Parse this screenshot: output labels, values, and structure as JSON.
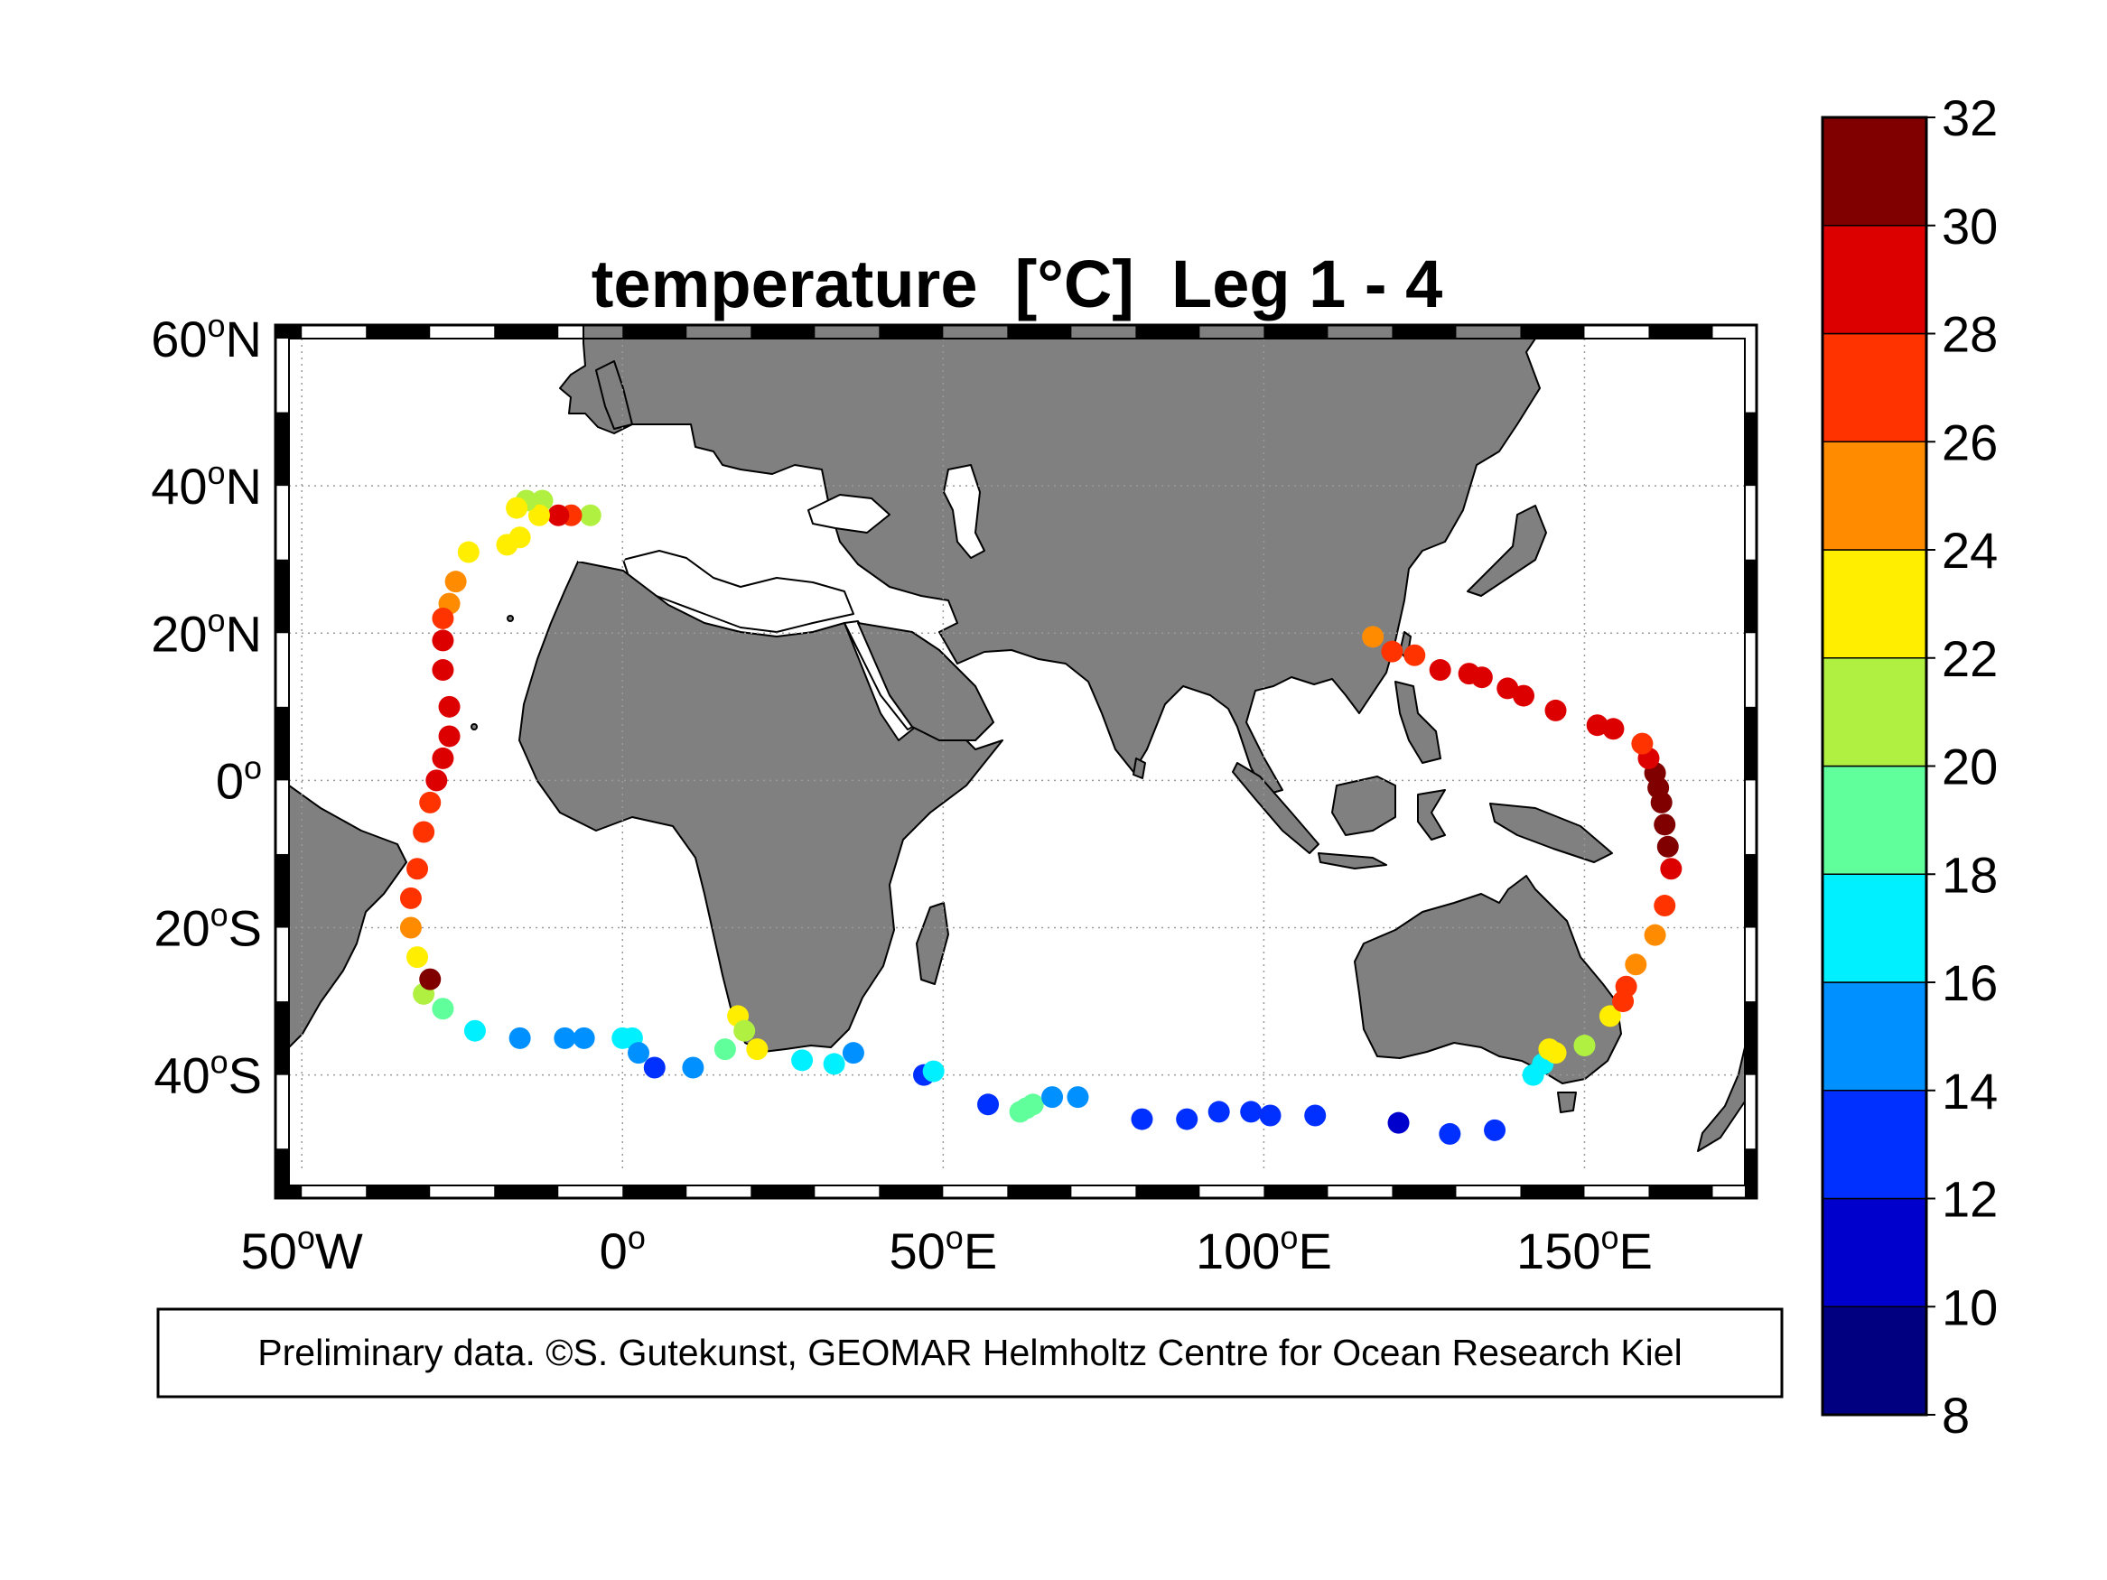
{
  "title": "temperature  [°C]  Leg 1 - 4",
  "note": "Preliminary data. ©S. Gutekunst, GEOMAR Helmholtz Centre for Ocean Research Kiel",
  "map": {
    "projection": "equirectangular",
    "lon_range": [
      -52,
      175
    ],
    "lat_range": [
      -55,
      60
    ],
    "land_color": "#808080",
    "ocean_color": "#ffffff",
    "grid": true,
    "x_ticks": [
      {
        "value": -50,
        "num": "50",
        "hemi": "W"
      },
      {
        "value": 0,
        "num": "0",
        "hemi": ""
      },
      {
        "value": 50,
        "num": "50",
        "hemi": "E"
      },
      {
        "value": 100,
        "num": "100",
        "hemi": "E"
      },
      {
        "value": 150,
        "num": "150",
        "hemi": "E"
      }
    ],
    "y_ticks": [
      {
        "value": 60,
        "num": "60",
        "hemi": "N"
      },
      {
        "value": 40,
        "num": "40",
        "hemi": "N"
      },
      {
        "value": 20,
        "num": "20",
        "hemi": "N"
      },
      {
        "value": 0,
        "num": "0",
        "hemi": ""
      },
      {
        "value": -20,
        "num": "20",
        "hemi": "S"
      },
      {
        "value": -40,
        "num": "40",
        "hemi": "S"
      }
    ],
    "degree_symbol": "o"
  },
  "colorbar": {
    "min": 8,
    "max": 32,
    "step": 2,
    "tick_labels": [
      "32",
      "30",
      "28",
      "26",
      "24",
      "22",
      "20",
      "18",
      "16",
      "14",
      "12",
      "10",
      "8"
    ],
    "colors": [
      "#000080",
      "#0000cc",
      "#0030ff",
      "#0090ff",
      "#00f0ff",
      "#60ff9c",
      "#b0f040",
      "#ffee00",
      "#ff8c00",
      "#ff3300",
      "#dd0000",
      "#800000"
    ]
  },
  "chart_data": {
    "type": "scatter",
    "x_name": "longitude (deg E)",
    "y_name": "latitude (deg N)",
    "value_name": "temperature [°C]",
    "points": [
      [
        -5,
        36,
        21
      ],
      [
        -8,
        36,
        27
      ],
      [
        -10,
        36,
        28
      ],
      [
        -12.5,
        38,
        21
      ],
      [
        -13,
        36,
        23
      ],
      [
        -15,
        38,
        21
      ],
      [
        -16.5,
        37,
        23
      ],
      [
        -16,
        33,
        23
      ],
      [
        -18,
        32,
        23
      ],
      [
        -24,
        31,
        23
      ],
      [
        -26,
        27,
        25
      ],
      [
        -27,
        24,
        24
      ],
      [
        -28,
        22,
        27
      ],
      [
        -28,
        19,
        28
      ],
      [
        -28,
        15,
        28
      ],
      [
        -27,
        10,
        29
      ],
      [
        -27,
        6,
        29
      ],
      [
        -28,
        3,
        28
      ],
      [
        -29,
        0,
        28
      ],
      [
        -30,
        -3,
        27
      ],
      [
        -31,
        -7,
        27
      ],
      [
        -32,
        -12,
        27
      ],
      [
        -33,
        -16,
        27
      ],
      [
        -33,
        -20,
        25
      ],
      [
        -32,
        -24,
        23
      ],
      [
        -31,
        -29,
        21
      ],
      [
        -30,
        -27,
        30
      ],
      [
        -28,
        -31,
        19
      ],
      [
        -23,
        -34,
        17
      ],
      [
        -16,
        -35,
        15
      ],
      [
        -9,
        -35,
        15
      ],
      [
        -6,
        -35,
        15
      ],
      [
        0,
        -35,
        17
      ],
      [
        1.5,
        -35,
        17
      ],
      [
        2.5,
        -37,
        14
      ],
      [
        5,
        -39,
        13
      ],
      [
        11,
        -39,
        15
      ],
      [
        16,
        -36.5,
        19
      ],
      [
        18,
        -32,
        23
      ],
      [
        19,
        -34,
        20
      ],
      [
        21,
        -36.5,
        23
      ],
      [
        28,
        -38,
        17
      ],
      [
        33,
        -38.5,
        16
      ],
      [
        36,
        -37,
        15
      ],
      [
        47,
        -40,
        13
      ],
      [
        48.5,
        -39.5,
        17
      ],
      [
        57,
        -44,
        12
      ],
      [
        62,
        -45,
        18
      ],
      [
        63,
        -44.5,
        19
      ],
      [
        64,
        -44,
        19
      ],
      [
        67,
        -43,
        15
      ],
      [
        71,
        -43,
        15
      ],
      [
        81,
        -46,
        12
      ],
      [
        88,
        -46,
        12
      ],
      [
        93,
        -45,
        12
      ],
      [
        98,
        -45,
        12
      ],
      [
        101,
        -45.5,
        12
      ],
      [
        108,
        -45.5,
        12
      ],
      [
        121,
        -46.5,
        10
      ],
      [
        129,
        -48,
        12
      ],
      [
        136,
        -47.5,
        12
      ],
      [
        142,
        -40,
        17
      ],
      [
        143.5,
        -38.5,
        16
      ],
      [
        144.5,
        -36.5,
        22
      ],
      [
        145.5,
        -37,
        23
      ],
      [
        150,
        -36,
        21
      ],
      [
        154,
        -32,
        23
      ],
      [
        156,
        -30,
        26
      ],
      [
        156.5,
        -28,
        27
      ],
      [
        158,
        -25,
        25
      ],
      [
        161,
        -21,
        25
      ],
      [
        162.5,
        -17,
        27
      ],
      [
        163.5,
        -12,
        28
      ],
      [
        163,
        -9,
        30
      ],
      [
        162.5,
        -6,
        30
      ],
      [
        162,
        -3,
        30
      ],
      [
        161.5,
        -1,
        30
      ],
      [
        161,
        1,
        30
      ],
      [
        160,
        3,
        28
      ],
      [
        159,
        5,
        27
      ],
      [
        154.5,
        7,
        28
      ],
      [
        152,
        7.5,
        28
      ],
      [
        145.5,
        9.5,
        28
      ],
      [
        140.5,
        11.5,
        28
      ],
      [
        138,
        12.5,
        28
      ],
      [
        134,
        14,
        28
      ],
      [
        132,
        14.5,
        28
      ],
      [
        127.5,
        15,
        28
      ],
      [
        123.5,
        17,
        27
      ],
      [
        120,
        17.5,
        27
      ],
      [
        117,
        19.5,
        25
      ]
    ]
  }
}
